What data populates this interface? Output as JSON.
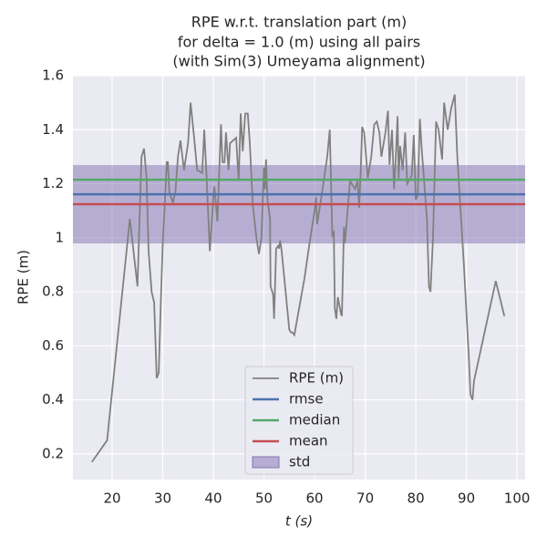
{
  "chart_data": {
    "type": "line",
    "title": [
      "RPE w.r.t. translation part (m)",
      "for delta = 1.0 (m) using all pairs",
      "(with Sim(3) Umeyama alignment)"
    ],
    "xlabel": "t (s)",
    "ylabel": "RPE (m)",
    "xlim": [
      12.25,
      101.6
    ],
    "ylim": [
      0.105,
      1.6
    ],
    "xticks": [
      20,
      30,
      40,
      50,
      60,
      70,
      80,
      90,
      100
    ],
    "yticks": [
      0.2,
      0.4,
      0.6,
      0.8,
      1.0,
      1.2,
      1.4,
      1.6
    ],
    "grid": true,
    "legend": "lower center",
    "x": [
      16,
      19,
      23.5,
      25,
      25.8,
      26.3,
      26.8,
      27.2,
      27.8,
      28.3,
      28.8,
      29.2,
      29.6,
      30,
      30.8,
      31,
      31.3,
      32,
      32.5,
      33,
      33.5,
      34.2,
      35,
      35.5,
      36.2,
      36.8,
      37.8,
      38.2,
      38.6,
      39.3,
      40,
      40.2,
      40.8,
      41.5,
      41.8,
      42.2,
      42.5,
      43,
      43.3,
      44.5,
      45,
      45.4,
      45.8,
      46.3,
      46.8,
      47.2,
      47.8,
      48.5,
      49,
      49.5,
      50,
      50.2,
      50.4,
      50.7,
      51.2,
      51.3,
      51.8,
      52,
      52.4,
      52.8,
      53,
      53.2,
      53.5,
      55,
      55.3,
      55.6,
      56,
      58,
      59,
      60,
      60.3,
      60.5,
      61.5,
      62.5,
      63,
      63.5,
      63.8,
      64,
      64.3,
      64.6,
      65.2,
      65.4,
      65.8,
      66,
      67,
      68,
      68.5,
      68.8,
      69.1,
      69.4,
      69.8,
      70.5,
      71.2,
      71.8,
      72.3,
      72.8,
      73.2,
      74,
      74.5,
      74.8,
      75.3,
      75.7,
      76,
      76.4,
      76.6,
      76.9,
      77.4,
      77.9,
      78.3,
      79.2,
      79.6,
      80,
      80.4,
      80.8,
      81.2,
      82.2,
      82.6,
      82.9,
      83.4,
      84,
      84.5,
      85.2,
      85.6,
      86.3,
      87,
      87.7,
      88.2,
      89.5,
      90.5,
      90.8,
      91.2,
      91.5,
      95.8,
      97.5
    ],
    "series": [
      {
        "name": "RPE (m)",
        "color": "#808080",
        "values": [
          0.17,
          0.25,
          1.07,
          0.82,
          1.3,
          1.33,
          1.22,
          0.95,
          0.8,
          0.76,
          0.48,
          0.5,
          0.75,
          0.98,
          1.28,
          1.28,
          1.17,
          1.13,
          1.17,
          1.3,
          1.36,
          1.25,
          1.35,
          1.5,
          1.37,
          1.25,
          1.24,
          1.4,
          1.25,
          0.95,
          1.15,
          1.19,
          1.06,
          1.42,
          1.28,
          1.28,
          1.39,
          1.25,
          1.35,
          1.37,
          1.21,
          1.46,
          1.32,
          1.46,
          1.46,
          1.35,
          1.12,
          1.0,
          0.94,
          1.0,
          1.26,
          1.18,
          1.29,
          1.14,
          1.07,
          0.82,
          0.79,
          0.7,
          0.96,
          0.97,
          0.96,
          0.99,
          0.95,
          0.66,
          0.65,
          0.65,
          0.64,
          0.85,
          0.98,
          1.1,
          1.15,
          1.05,
          1.17,
          1.3,
          1.4,
          1.01,
          1.02,
          0.74,
          0.7,
          0.78,
          0.72,
          0.71,
          1.04,
          0.98,
          1.21,
          1.18,
          1.21,
          1.11,
          1.24,
          1.41,
          1.39,
          1.22,
          1.3,
          1.42,
          1.43,
          1.39,
          1.3,
          1.39,
          1.47,
          1.27,
          1.4,
          1.18,
          1.28,
          1.45,
          1.22,
          1.34,
          1.25,
          1.39,
          1.2,
          1.23,
          1.38,
          1.14,
          1.16,
          1.44,
          1.32,
          1.07,
          0.82,
          0.8,
          1.0,
          1.43,
          1.4,
          1.29,
          1.5,
          1.4,
          1.48,
          1.53,
          1.3,
          0.9,
          0.55,
          0.42,
          0.4,
          0.47,
          0.84,
          0.71
        ]
      },
      {
        "name": "rmse",
        "color": "#4c72b0",
        "value": 1.161
      },
      {
        "name": "median",
        "color": "#55a868",
        "value": 1.215
      },
      {
        "name": "mean",
        "color": "#c44e52",
        "value": 1.124
      },
      {
        "name": "std",
        "color": "#8172b2",
        "value": 0.145
      }
    ]
  }
}
